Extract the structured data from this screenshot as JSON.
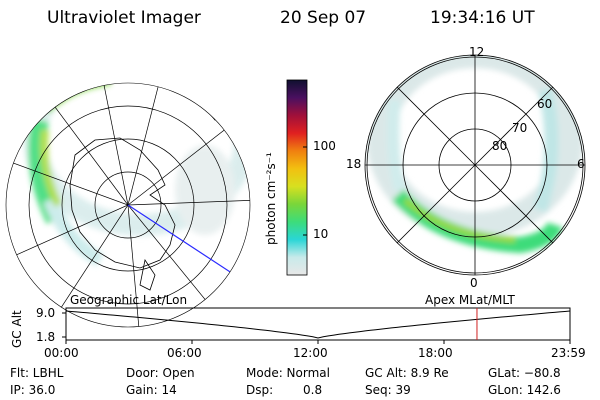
{
  "header": {
    "instrument": "Ultraviolet Imager",
    "date": "20 Sep 07",
    "time": "19:34:16 UT"
  },
  "geo_panel": {
    "label": "Geographic Lat/Lon"
  },
  "apex_panel": {
    "label": "Apex  MLat/MLT",
    "mlt_labels": {
      "top": "12",
      "left": "18",
      "right": "6",
      "bottom": "0"
    },
    "lat_labels": [
      "60",
      "70",
      "80"
    ]
  },
  "colorbar": {
    "unit": "photon cm⁻²s⁻¹",
    "ticks": [
      {
        "label": "100",
        "value": 100
      },
      {
        "label": "10",
        "value": 10
      }
    ],
    "colors": [
      "#e8e8e8",
      "#c8eaea",
      "#2ad6d6",
      "#3ddc7a",
      "#7ad63a",
      "#d8e020",
      "#f2c010",
      "#f08010",
      "#e02020",
      "#a0103a",
      "#4a1060",
      "#101030"
    ]
  },
  "altitude_plot": {
    "ylabel": "GC Alt",
    "y_ticks": [
      "9.0",
      "1.8"
    ],
    "x_ticks": [
      "00:00",
      "06:00",
      "12:00",
      "18:00",
      "23:59"
    ],
    "current_time_hours": 19.57,
    "x_range_hours": [
      0,
      24
    ],
    "y_range": [
      1.8,
      9.0
    ],
    "min_time_hours": 12.0
  },
  "info": {
    "filter": "Flt: LBHL",
    "ip": "IP: 36.0",
    "door": "Door: Open",
    "gain": "Gain: 14",
    "mode": "Mode: Normal",
    "dsp_label": "Dsp:",
    "dsp_value": "0.8",
    "gc_alt": "GC Alt: 8.9 Re",
    "seq": "Seq: 39",
    "glat": "GLat: −80.8",
    "glon": "GLon: 142.6"
  }
}
